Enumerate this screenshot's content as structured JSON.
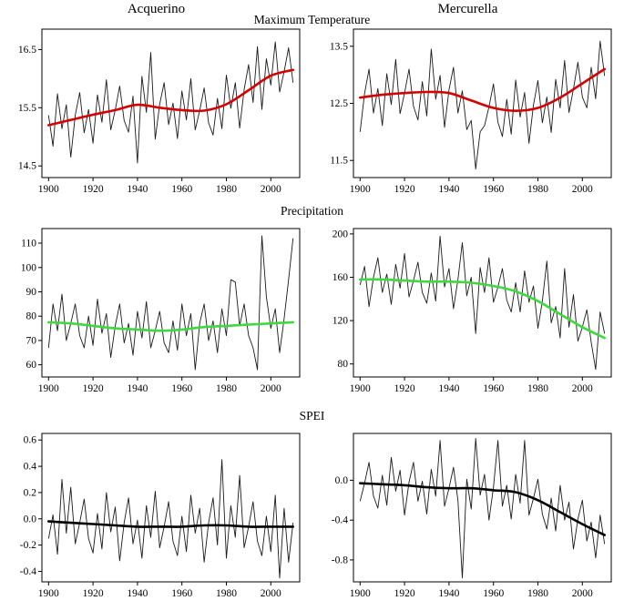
{
  "header": {
    "left_column": "Acquerino",
    "right_column": "Mercurella"
  },
  "rows": [
    {
      "title": "Maximum Temperature"
    },
    {
      "title": "Precipitation"
    },
    {
      "title": "SPEI"
    }
  ],
  "colors": {
    "temperature_trend": "#d40000",
    "precipitation_trend": "#3fd83f",
    "spei_trend": "#000000",
    "series_line": "#1a1a1a"
  },
  "chart_data": [
    {
      "type": "line",
      "site": "Acquerino",
      "variable": "Maximum Temperature",
      "x_start": 1900,
      "x_step": 2,
      "xlim": [
        1897,
        2013
      ],
      "ylim": [
        14.3,
        16.85
      ],
      "xticks": [
        1900,
        1920,
        1940,
        1960,
        1980,
        2000
      ],
      "xtick_labels": [
        "1900",
        "1920",
        "1940",
        "1960",
        "1980",
        "2000"
      ],
      "yticks": [
        14.5,
        15.5,
        16.5
      ],
      "ytick_labels": [
        "14.5",
        "15.5",
        "16.5"
      ],
      "values": [
        15.37,
        14.84,
        15.74,
        15.14,
        15.55,
        14.65,
        15.37,
        15.76,
        15.07,
        15.47,
        14.89,
        15.72,
        15.25,
        15.98,
        15.12,
        15.46,
        15.87,
        15.28,
        15.08,
        15.7,
        14.55,
        16.04,
        15.42,
        16.45,
        14.96,
        15.56,
        15.93,
        15.21,
        15.58,
        14.97,
        15.79,
        15.29,
        16.0,
        15.12,
        15.45,
        15.84,
        15.24,
        15.03,
        15.66,
        15.14,
        16.06,
        15.49,
        15.93,
        15.15,
        15.81,
        16.24,
        15.59,
        16.55,
        15.47,
        16.34,
        15.89,
        16.63,
        15.77,
        16.12,
        16.53,
        15.93
      ],
      "trend": {
        "color": "#d40000",
        "x": [
          1900,
          1910,
          1920,
          1930,
          1940,
          1950,
          1960,
          1970,
          1980,
          1990,
          2000,
          2010
        ],
        "values": [
          15.2,
          15.29,
          15.38,
          15.46,
          15.55,
          15.5,
          15.46,
          15.45,
          15.56,
          15.8,
          16.05,
          16.15
        ]
      }
    },
    {
      "type": "line",
      "site": "Mercurella",
      "variable": "Maximum Temperature",
      "x_start": 1900,
      "x_step": 2,
      "xlim": [
        1897,
        2013
      ],
      "ylim": [
        11.2,
        13.8
      ],
      "xticks": [
        1900,
        1920,
        1940,
        1960,
        1980,
        2000
      ],
      "xtick_labels": [
        "1900",
        "1920",
        "1940",
        "1960",
        "1980",
        "2000"
      ],
      "yticks": [
        11.5,
        12.5,
        13.5
      ],
      "ytick_labels": [
        "11.5",
        "12.5",
        "13.5"
      ],
      "values": [
        12.0,
        12.67,
        13.1,
        12.33,
        12.76,
        12.11,
        13.02,
        12.48,
        13.27,
        12.32,
        12.68,
        13.1,
        12.45,
        12.21,
        12.88,
        12.28,
        13.45,
        12.57,
        12.99,
        12.08,
        12.74,
        13.13,
        12.33,
        12.72,
        12.04,
        12.2,
        11.35,
        12.0,
        12.11,
        12.44,
        12.84,
        12.17,
        11.92,
        12.57,
        11.96,
        12.91,
        12.26,
        12.69,
        11.8,
        12.47,
        12.9,
        12.16,
        12.61,
        11.99,
        12.92,
        12.42,
        13.25,
        12.34,
        12.75,
        13.22,
        12.61,
        12.42,
        13.13,
        12.58,
        13.59,
        12.98
      ],
      "trend": {
        "color": "#d40000",
        "x": [
          1900,
          1910,
          1920,
          1930,
          1940,
          1950,
          1960,
          1970,
          1980,
          1990,
          2000,
          2010
        ],
        "values": [
          12.6,
          12.65,
          12.68,
          12.7,
          12.68,
          12.55,
          12.42,
          12.37,
          12.42,
          12.6,
          12.85,
          13.1
        ]
      }
    },
    {
      "type": "line",
      "site": "Acquerino",
      "variable": "Precipitation",
      "x_start": 1900,
      "x_step": 2,
      "xlim": [
        1897,
        2013
      ],
      "ylim": [
        55,
        116
      ],
      "xticks": [
        1900,
        1920,
        1940,
        1960,
        1980,
        2000
      ],
      "xtick_labels": [
        "1900",
        "1920",
        "1940",
        "1960",
        "1980",
        "2000"
      ],
      "yticks": [
        60,
        70,
        80,
        90,
        100,
        110
      ],
      "ytick_labels": [
        "60",
        "70",
        "80",
        "90",
        "100",
        "110"
      ],
      "values": [
        67,
        85,
        74,
        89,
        70,
        77,
        85,
        72,
        67,
        80,
        68,
        87,
        73,
        81,
        63,
        76,
        85,
        69,
        77,
        64,
        82,
        71,
        86,
        67,
        74,
        82,
        69,
        65,
        78,
        66,
        85,
        72,
        81,
        58,
        77,
        85,
        70,
        78,
        65,
        83,
        72,
        95,
        94,
        76,
        85,
        72,
        67,
        58,
        113,
        88,
        75,
        83,
        65,
        79,
        95,
        112
      ],
      "trend": {
        "color": "#3fd83f",
        "x": [
          1900,
          1910,
          1920,
          1930,
          1940,
          1950,
          1960,
          1970,
          1980,
          1990,
          2000,
          2010
        ],
        "values": [
          77.5,
          77,
          76,
          75,
          74.5,
          74,
          74.5,
          75.5,
          76,
          76.5,
          77,
          77.5
        ]
      }
    },
    {
      "type": "line",
      "site": "Mercurella",
      "variable": "Precipitation",
      "x_start": 1900,
      "x_step": 2,
      "xlim": [
        1897,
        2013
      ],
      "ylim": [
        68,
        205
      ],
      "xticks": [
        1900,
        1920,
        1940,
        1960,
        1980,
        2000
      ],
      "xtick_labels": [
        "1900",
        "1920",
        "1940",
        "1960",
        "1980",
        "2000"
      ],
      "yticks": [
        80,
        120,
        160,
        200
      ],
      "ytick_labels": [
        "80",
        "120",
        "160",
        "200"
      ],
      "values": [
        153,
        170,
        133,
        160,
        178,
        146,
        163,
        135,
        172,
        150,
        182,
        142,
        157,
        174,
        146,
        136,
        164,
        138,
        198,
        151,
        168,
        131,
        158,
        192,
        143,
        160,
        108,
        169,
        146,
        178,
        137,
        151,
        168,
        139,
        128,
        155,
        128,
        166,
        137,
        152,
        113,
        138,
        175,
        118,
        133,
        104,
        168,
        114,
        144,
        101,
        114,
        130,
        100,
        75,
        128,
        108
      ],
      "trend": {
        "color": "#3fd83f",
        "x": [
          1900,
          1910,
          1920,
          1930,
          1940,
          1950,
          1960,
          1970,
          1980,
          1990,
          2000,
          2010
        ],
        "values": [
          158,
          158,
          157,
          156,
          156,
          155,
          152,
          147,
          138,
          126,
          114,
          104
        ]
      }
    },
    {
      "type": "line",
      "site": "Acquerino",
      "variable": "SPEI",
      "x_start": 1900,
      "x_step": 2,
      "xlim": [
        1897,
        2013
      ],
      "ylim": [
        -0.48,
        0.65
      ],
      "xticks": [
        1900,
        1920,
        1940,
        1960,
        1980,
        2000
      ],
      "xtick_labels": [
        "1900",
        "1920",
        "1940",
        "1960",
        "1980",
        "2000"
      ],
      "yticks": [
        -0.4,
        -0.2,
        0.0,
        0.2,
        0.4,
        0.6
      ],
      "ytick_labels": [
        "-0.4",
        "-0.2",
        "0.0",
        "0.2",
        "0.4",
        "0.6"
      ],
      "values": [
        -0.15,
        0.03,
        -0.27,
        0.3,
        -0.11,
        0.24,
        -0.19,
        -0.03,
        0.15,
        -0.15,
        -0.26,
        0.04,
        -0.23,
        0.2,
        -0.1,
        0.09,
        -0.32,
        -0.03,
        0.16,
        -0.19,
        -0.01,
        -0.3,
        0.1,
        -0.14,
        0.21,
        -0.22,
        -0.06,
        0.13,
        -0.17,
        -0.28,
        0.02,
        -0.25,
        0.18,
        -0.11,
        0.08,
        -0.33,
        -0.03,
        0.16,
        -0.2,
        0.45,
        -0.3,
        0.1,
        -0.14,
        0.33,
        -0.22,
        -0.06,
        0.13,
        -0.17,
        -0.28,
        0.02,
        -0.25,
        0.18,
        -0.45,
        0.08,
        -0.33,
        -0.03
      ],
      "trend": {
        "color": "#000000",
        "x": [
          1900,
          1910,
          1920,
          1930,
          1940,
          1950,
          1960,
          1970,
          1980,
          1990,
          2000,
          2010
        ],
        "values": [
          -0.02,
          -0.03,
          -0.04,
          -0.05,
          -0.06,
          -0.06,
          -0.06,
          -0.05,
          -0.05,
          -0.06,
          -0.06,
          -0.06
        ]
      }
    },
    {
      "type": "line",
      "site": "Mercurella",
      "variable": "SPEI",
      "x_start": 1900,
      "x_step": 2,
      "xlim": [
        1897,
        2013
      ],
      "ylim": [
        -1.02,
        0.47
      ],
      "xticks": [
        1900,
        1920,
        1940,
        1960,
        1980,
        2000
      ],
      "xtick_labels": [
        "1900",
        "1920",
        "1940",
        "1960",
        "1980",
        "2000"
      ],
      "yticks": [
        -0.8,
        -0.4,
        0.0
      ],
      "ytick_labels": [
        "-0.8",
        "-0.4",
        "0.0"
      ],
      "values": [
        -0.21,
        -0.03,
        0.18,
        -0.16,
        -0.28,
        0.05,
        -0.25,
        0.23,
        -0.11,
        0.1,
        -0.35,
        -0.02,
        0.18,
        -0.21,
        -0.01,
        -0.34,
        0.11,
        -0.16,
        0.4,
        -0.26,
        -0.08,
        0.13,
        -0.2,
        -0.98,
        0.01,
        -0.29,
        0.42,
        -0.15,
        0.06,
        -0.4,
        -0.07,
        0.4,
        -0.26,
        -0.05,
        -0.39,
        0.06,
        -0.23,
        0.4,
        -0.35,
        -0.18,
        0.01,
        -0.34,
        -0.49,
        -0.18,
        -0.51,
        -0.05,
        -0.4,
        -0.22,
        -0.69,
        -0.39,
        -0.2,
        -0.61,
        -0.42,
        -0.78,
        -0.35,
        -0.64
      ],
      "trend": {
        "color": "#000000",
        "x": [
          1900,
          1910,
          1920,
          1930,
          1940,
          1950,
          1960,
          1970,
          1980,
          1990,
          2000,
          2010
        ],
        "values": [
          -0.03,
          -0.04,
          -0.05,
          -0.07,
          -0.08,
          -0.08,
          -0.1,
          -0.12,
          -0.2,
          -0.32,
          -0.44,
          -0.55
        ]
      }
    }
  ]
}
